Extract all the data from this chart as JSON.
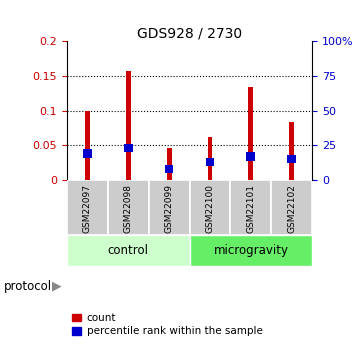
{
  "title": "GDS928 / 2730",
  "samples": [
    "GSM22097",
    "GSM22098",
    "GSM22099",
    "GSM22100",
    "GSM22101",
    "GSM22102"
  ],
  "count_values": [
    0.1,
    0.157,
    0.046,
    0.062,
    0.134,
    0.084
  ],
  "percentile_values": [
    0.038,
    0.046,
    0.016,
    0.026,
    0.034,
    0.03
  ],
  "bar_color": "#cc0000",
  "percentile_color": "#0000cc",
  "ylim_left": [
    0,
    0.2
  ],
  "ylim_right": [
    0,
    100
  ],
  "yticks_left": [
    0,
    0.05,
    0.1,
    0.15,
    0.2
  ],
  "yticks_right": [
    0,
    25,
    50,
    75,
    100
  ],
  "ytick_labels_left": [
    "0",
    "0.05",
    "0.1",
    "0.15",
    "0.2"
  ],
  "ytick_labels_right": [
    "0",
    "25",
    "50",
    "75",
    "100%"
  ],
  "groups": [
    {
      "label": "control",
      "color": "#ccffcc",
      "n": 3
    },
    {
      "label": "microgravity",
      "color": "#66ee66",
      "n": 3
    }
  ],
  "protocol_label": "protocol",
  "legend_count_label": "count",
  "legend_percentile_label": "percentile rank within the sample",
  "bar_width": 0.12,
  "background_color": "#ffffff",
  "tick_label_color_left": "#cc0000",
  "tick_label_color_right": "#0000cc",
  "label_box_color": "#cccccc",
  "ctrl_color": "#ccffcc",
  "micro_color": "#66ee66"
}
